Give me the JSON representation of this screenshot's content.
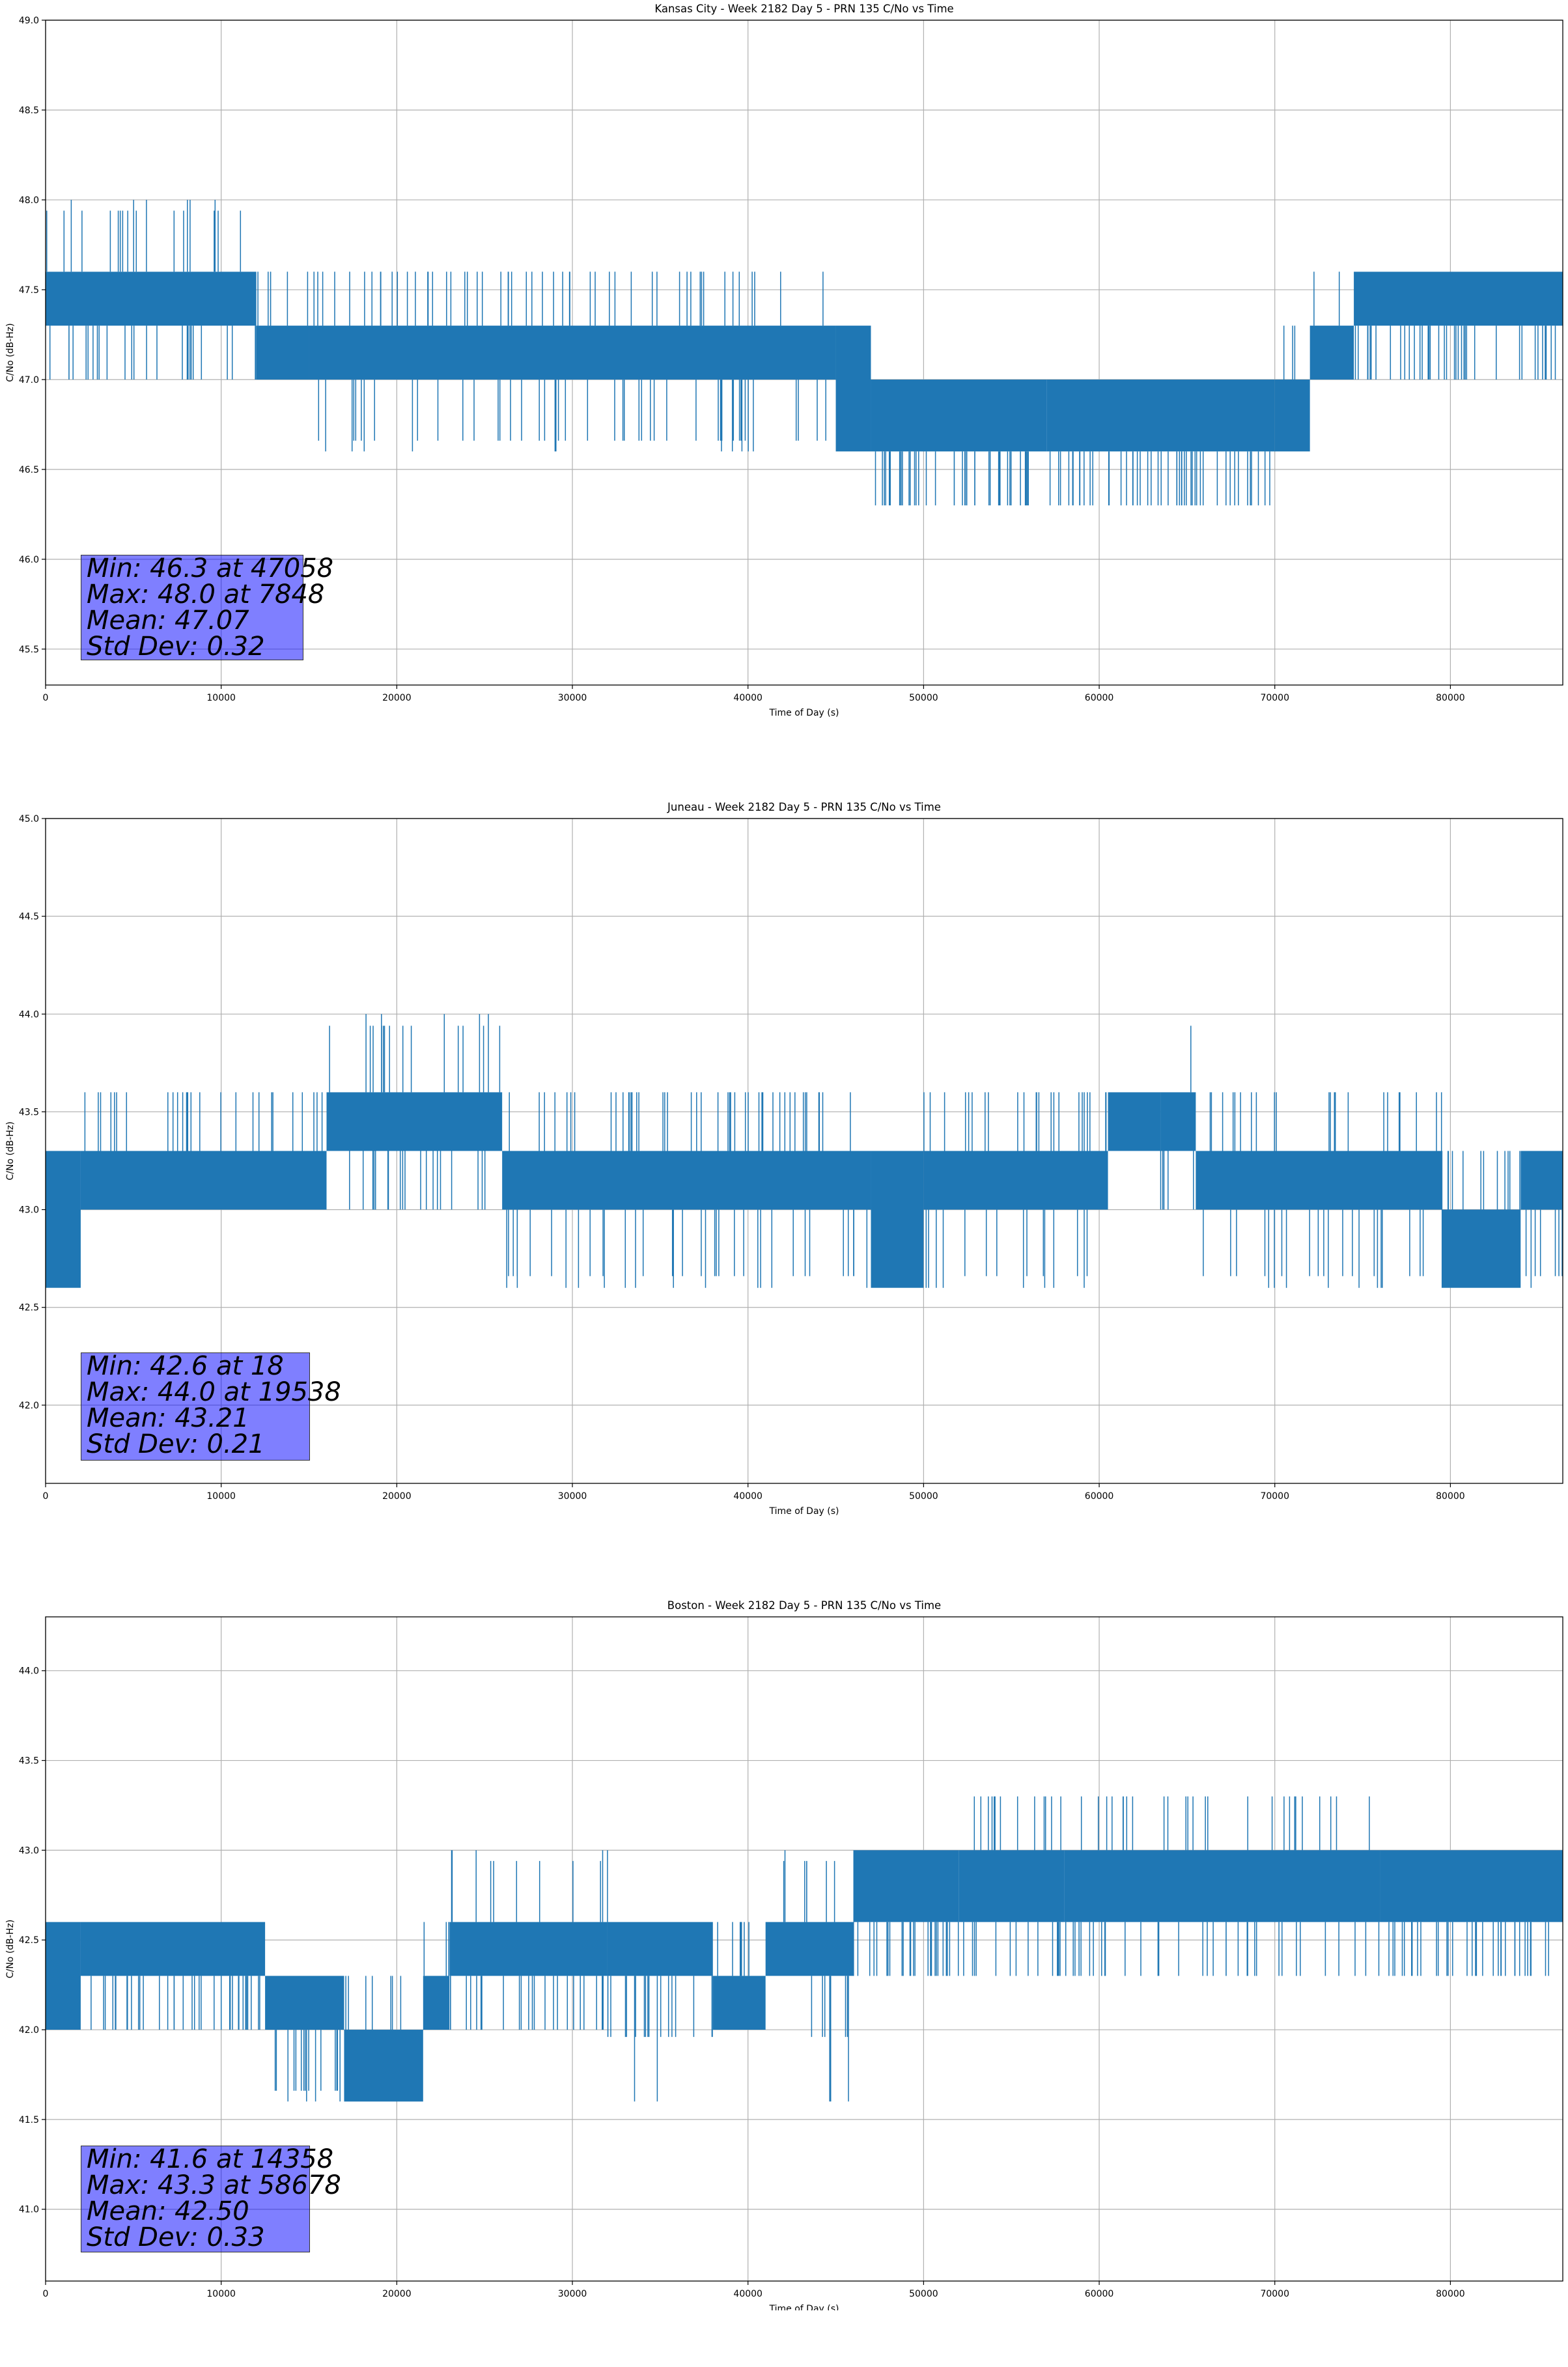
{
  "chart_data": [
    {
      "type": "line",
      "title": "Kansas City - Week 2182 Day 5 - PRN 135 C/No vs Time",
      "xlabel": "Time of Day (s)",
      "ylabel": "C/No (dB-Hz)",
      "xlim": [
        0,
        86400
      ],
      "ylim": [
        45.3,
        49.0
      ],
      "xticks": [
        "0",
        "10000",
        "20000",
        "30000",
        "40000",
        "50000",
        "60000",
        "70000",
        "80000"
      ],
      "yticks": [
        "45.5",
        "46.0",
        "46.5",
        "47.0",
        "47.5",
        "48.0",
        "48.5",
        "49.0"
      ],
      "grid": true,
      "series_color": "#1f77b4",
      "series_segments": [
        {
          "x_start": 0,
          "x_end": 12000,
          "low": 47.3,
          "high": 47.6,
          "min_spike": 47.0,
          "max_spike": 48.0
        },
        {
          "x_start": 12000,
          "x_end": 15000,
          "low": 47.0,
          "high": 47.3,
          "min_spike": 47.0,
          "max_spike": 47.6
        },
        {
          "x_start": 15000,
          "x_end": 45000,
          "low": 47.0,
          "high": 47.3,
          "min_spike": 46.6,
          "max_spike": 47.6
        },
        {
          "x_start": 45000,
          "x_end": 47000,
          "low": 46.6,
          "high": 47.3,
          "min_spike": 46.6,
          "max_spike": 47.3
        },
        {
          "x_start": 47000,
          "x_end": 57000,
          "low": 46.6,
          "high": 47.0,
          "min_spike": 46.3,
          "max_spike": 47.0
        },
        {
          "x_start": 57000,
          "x_end": 70000,
          "low": 46.6,
          "high": 47.0,
          "min_spike": 46.3,
          "max_spike": 47.0
        },
        {
          "x_start": 70000,
          "x_end": 72000,
          "low": 46.6,
          "high": 47.0,
          "min_spike": 46.6,
          "max_spike": 47.3
        },
        {
          "x_start": 72000,
          "x_end": 74500,
          "low": 47.0,
          "high": 47.3,
          "min_spike": 47.0,
          "max_spike": 47.6
        },
        {
          "x_start": 74500,
          "x_end": 86400,
          "low": 47.3,
          "high": 47.6,
          "min_spike": 47.0,
          "max_spike": 47.6
        }
      ],
      "stats": [
        "Min: 46.3 at 47058",
        "Max: 48.0 at 7848",
        "Mean: 47.07",
        "Std Dev: 0.32"
      ]
    },
    {
      "type": "line",
      "title": "Juneau - Week 2182 Day 5 - PRN 135 C/No vs Time",
      "xlabel": "Time of Day (s)",
      "ylabel": "C/No (dB-Hz)",
      "xlim": [
        0,
        86400
      ],
      "ylim": [
        41.6,
        45.0
      ],
      "xticks": [
        "0",
        "10000",
        "20000",
        "30000",
        "40000",
        "50000",
        "60000",
        "70000",
        "80000"
      ],
      "yticks": [
        "42.0",
        "42.5",
        "43.0",
        "43.5",
        "44.0",
        "44.5",
        "45.0"
      ],
      "grid": true,
      "series_color": "#1f77b4",
      "series_segments": [
        {
          "x_start": 0,
          "x_end": 2000,
          "low": 42.6,
          "high": 43.3,
          "min_spike": 42.6,
          "max_spike": 43.3
        },
        {
          "x_start": 2000,
          "x_end": 16000,
          "low": 43.0,
          "high": 43.3,
          "min_spike": 43.0,
          "max_spike": 43.6
        },
        {
          "x_start": 16000,
          "x_end": 26000,
          "low": 43.3,
          "high": 43.6,
          "min_spike": 43.0,
          "max_spike": 44.0
        },
        {
          "x_start": 26000,
          "x_end": 47000,
          "low": 43.0,
          "high": 43.3,
          "min_spike": 42.6,
          "max_spike": 43.6
        },
        {
          "x_start": 47000,
          "x_end": 50000,
          "low": 42.6,
          "high": 43.3,
          "min_spike": 42.6,
          "max_spike": 43.3
        },
        {
          "x_start": 50000,
          "x_end": 60500,
          "low": 43.0,
          "high": 43.3,
          "min_spike": 42.6,
          "max_spike": 43.6
        },
        {
          "x_start": 60500,
          "x_end": 63500,
          "low": 43.3,
          "high": 43.6,
          "min_spike": 43.3,
          "max_spike": 43.6
        },
        {
          "x_start": 63500,
          "x_end": 65500,
          "low": 43.3,
          "high": 43.6,
          "min_spike": 43.0,
          "max_spike": 44.0
        },
        {
          "x_start": 65500,
          "x_end": 79500,
          "low": 43.0,
          "high": 43.3,
          "min_spike": 42.6,
          "max_spike": 43.6
        },
        {
          "x_start": 79500,
          "x_end": 84000,
          "low": 42.6,
          "high": 43.0,
          "min_spike": 42.6,
          "max_spike": 43.3
        },
        {
          "x_start": 84000,
          "x_end": 86400,
          "low": 43.0,
          "high": 43.3,
          "min_spike": 42.6,
          "max_spike": 43.3
        }
      ],
      "stats": [
        "Min: 42.6 at 18",
        "Max: 44.0 at 19538",
        "Mean: 43.21",
        "Std Dev: 0.21"
      ]
    },
    {
      "type": "line",
      "title": "Boston - Week 2182 Day 5 - PRN 135 C/No vs Time",
      "xlabel": "Time of Day (s)",
      "ylabel": "C/No (dB-Hz)",
      "xlim": [
        0,
        86400
      ],
      "ylim": [
        40.6,
        44.3
      ],
      "xticks": [
        "0",
        "10000",
        "20000",
        "30000",
        "40000",
        "50000",
        "60000",
        "70000",
        "80000"
      ],
      "yticks": [
        "41.0",
        "41.5",
        "42.0",
        "42.5",
        "43.0",
        "43.5",
        "44.0"
      ],
      "grid": true,
      "series_color": "#1f77b4",
      "series_segments": [
        {
          "x_start": 0,
          "x_end": 2000,
          "low": 42.0,
          "high": 42.6,
          "min_spike": 42.0,
          "max_spike": 42.6
        },
        {
          "x_start": 2000,
          "x_end": 12500,
          "low": 42.3,
          "high": 42.6,
          "min_spike": 42.0,
          "max_spike": 42.6
        },
        {
          "x_start": 12500,
          "x_end": 17000,
          "low": 42.0,
          "high": 42.3,
          "min_spike": 41.6,
          "max_spike": 42.3
        },
        {
          "x_start": 17000,
          "x_end": 21500,
          "low": 41.6,
          "high": 42.0,
          "min_spike": 41.6,
          "max_spike": 42.3
        },
        {
          "x_start": 21500,
          "x_end": 23000,
          "low": 42.0,
          "high": 42.3,
          "min_spike": 42.0,
          "max_spike": 42.6
        },
        {
          "x_start": 23000,
          "x_end": 32000,
          "low": 42.3,
          "high": 42.6,
          "min_spike": 42.0,
          "max_spike": 43.0
        },
        {
          "x_start": 32000,
          "x_end": 38000,
          "low": 42.3,
          "high": 42.6,
          "min_spike": 41.6,
          "max_spike": 42.6
        },
        {
          "x_start": 38000,
          "x_end": 41000,
          "low": 42.0,
          "high": 42.3,
          "min_spike": 42.0,
          "max_spike": 42.6
        },
        {
          "x_start": 41000,
          "x_end": 46000,
          "low": 42.3,
          "high": 42.6,
          "min_spike": 41.6,
          "max_spike": 43.0
        },
        {
          "x_start": 46000,
          "x_end": 52000,
          "low": 42.6,
          "high": 43.0,
          "min_spike": 42.3,
          "max_spike": 43.0
        },
        {
          "x_start": 52000,
          "x_end": 58000,
          "low": 42.6,
          "high": 43.0,
          "min_spike": 42.3,
          "max_spike": 43.3
        },
        {
          "x_start": 58000,
          "x_end": 76000,
          "low": 42.6,
          "high": 43.0,
          "min_spike": 42.3,
          "max_spike": 43.3
        },
        {
          "x_start": 76000,
          "x_end": 86400,
          "low": 42.6,
          "high": 43.0,
          "min_spike": 42.3,
          "max_spike": 43.0
        }
      ],
      "stats": [
        "Min: 41.6 at 14358",
        "Max: 43.3 at 58678",
        "Mean: 42.50",
        "Std Dev: 0.33"
      ]
    }
  ]
}
